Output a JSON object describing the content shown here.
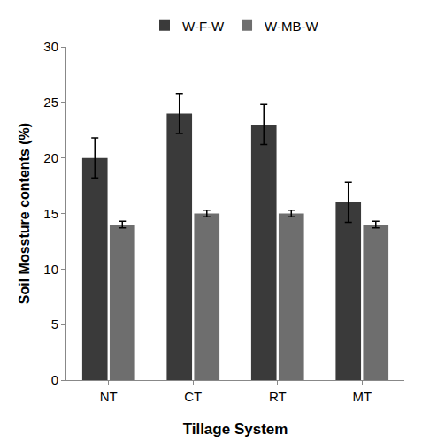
{
  "chart_data": {
    "type": "bar",
    "x_label": "Tillage System",
    "y_label": "Soil Mossture contents (%)",
    "categories": [
      "NT",
      "CT",
      "RT",
      "MT"
    ],
    "series": [
      {
        "name": "W-F-W",
        "color": "#3a3a3a",
        "values": [
          20,
          24,
          23,
          16
        ],
        "errors": [
          1.8,
          1.8,
          1.8,
          1.8
        ]
      },
      {
        "name": "W-MB-W",
        "color": "#6e6e6e",
        "values": [
          14,
          15,
          15,
          14
        ],
        "errors": [
          0.3,
          0.3,
          0.3,
          0.3
        ]
      }
    ],
    "ylim": [
      0,
      30
    ],
    "yticks": [
      0,
      5,
      10,
      15,
      20,
      25,
      30
    ],
    "grid": false,
    "legend": "top"
  }
}
